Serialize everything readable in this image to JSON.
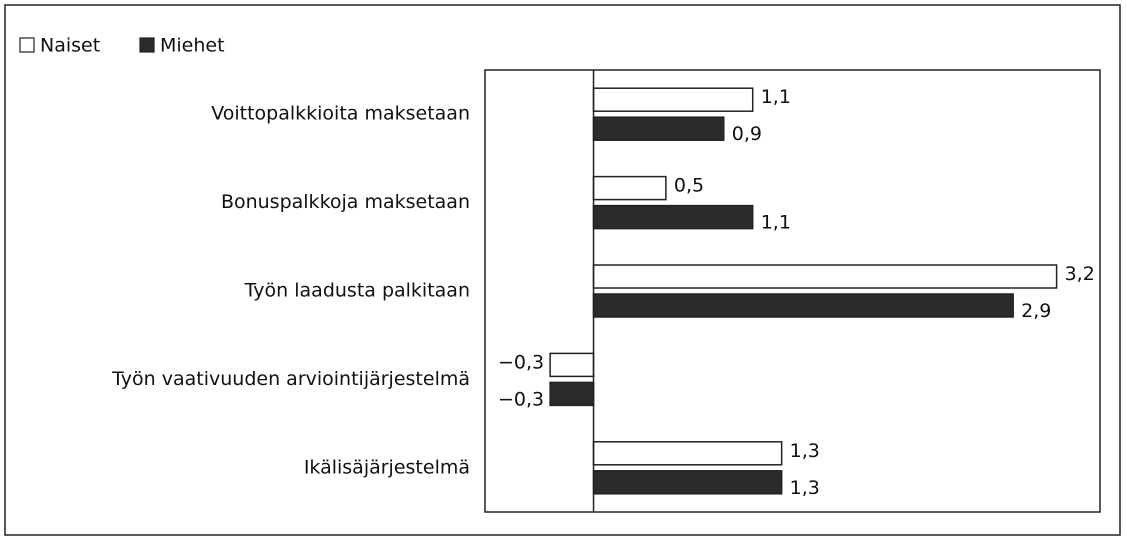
{
  "chart_data": {
    "type": "hbar",
    "categories": [
      "Voittopalkkioita maksetaan",
      "Bonuspalkkoja maksetaan",
      "Työn laadusta palkitaan",
      "Työn vaativuuden arviointijärjestelmä",
      "Ikälisäjärjestelmä"
    ],
    "series": [
      {
        "name": "Naiset",
        "color": "#ffffff",
        "values": [
          1.1,
          0.5,
          3.2,
          -0.3,
          1.3
        ],
        "value_labels": [
          "1,1",
          "0,5",
          "3,2",
          "−0,3",
          "1,3"
        ]
      },
      {
        "name": "Miehet",
        "color": "#2b2b2b",
        "values": [
          0.9,
          1.1,
          2.9,
          -0.3,
          1.3
        ],
        "value_labels": [
          "0,9",
          "1,1",
          "2,9",
          "−0,3",
          "1,3"
        ]
      }
    ],
    "xlim": [
      -0.75,
      3.5
    ],
    "legend": "top-left"
  }
}
